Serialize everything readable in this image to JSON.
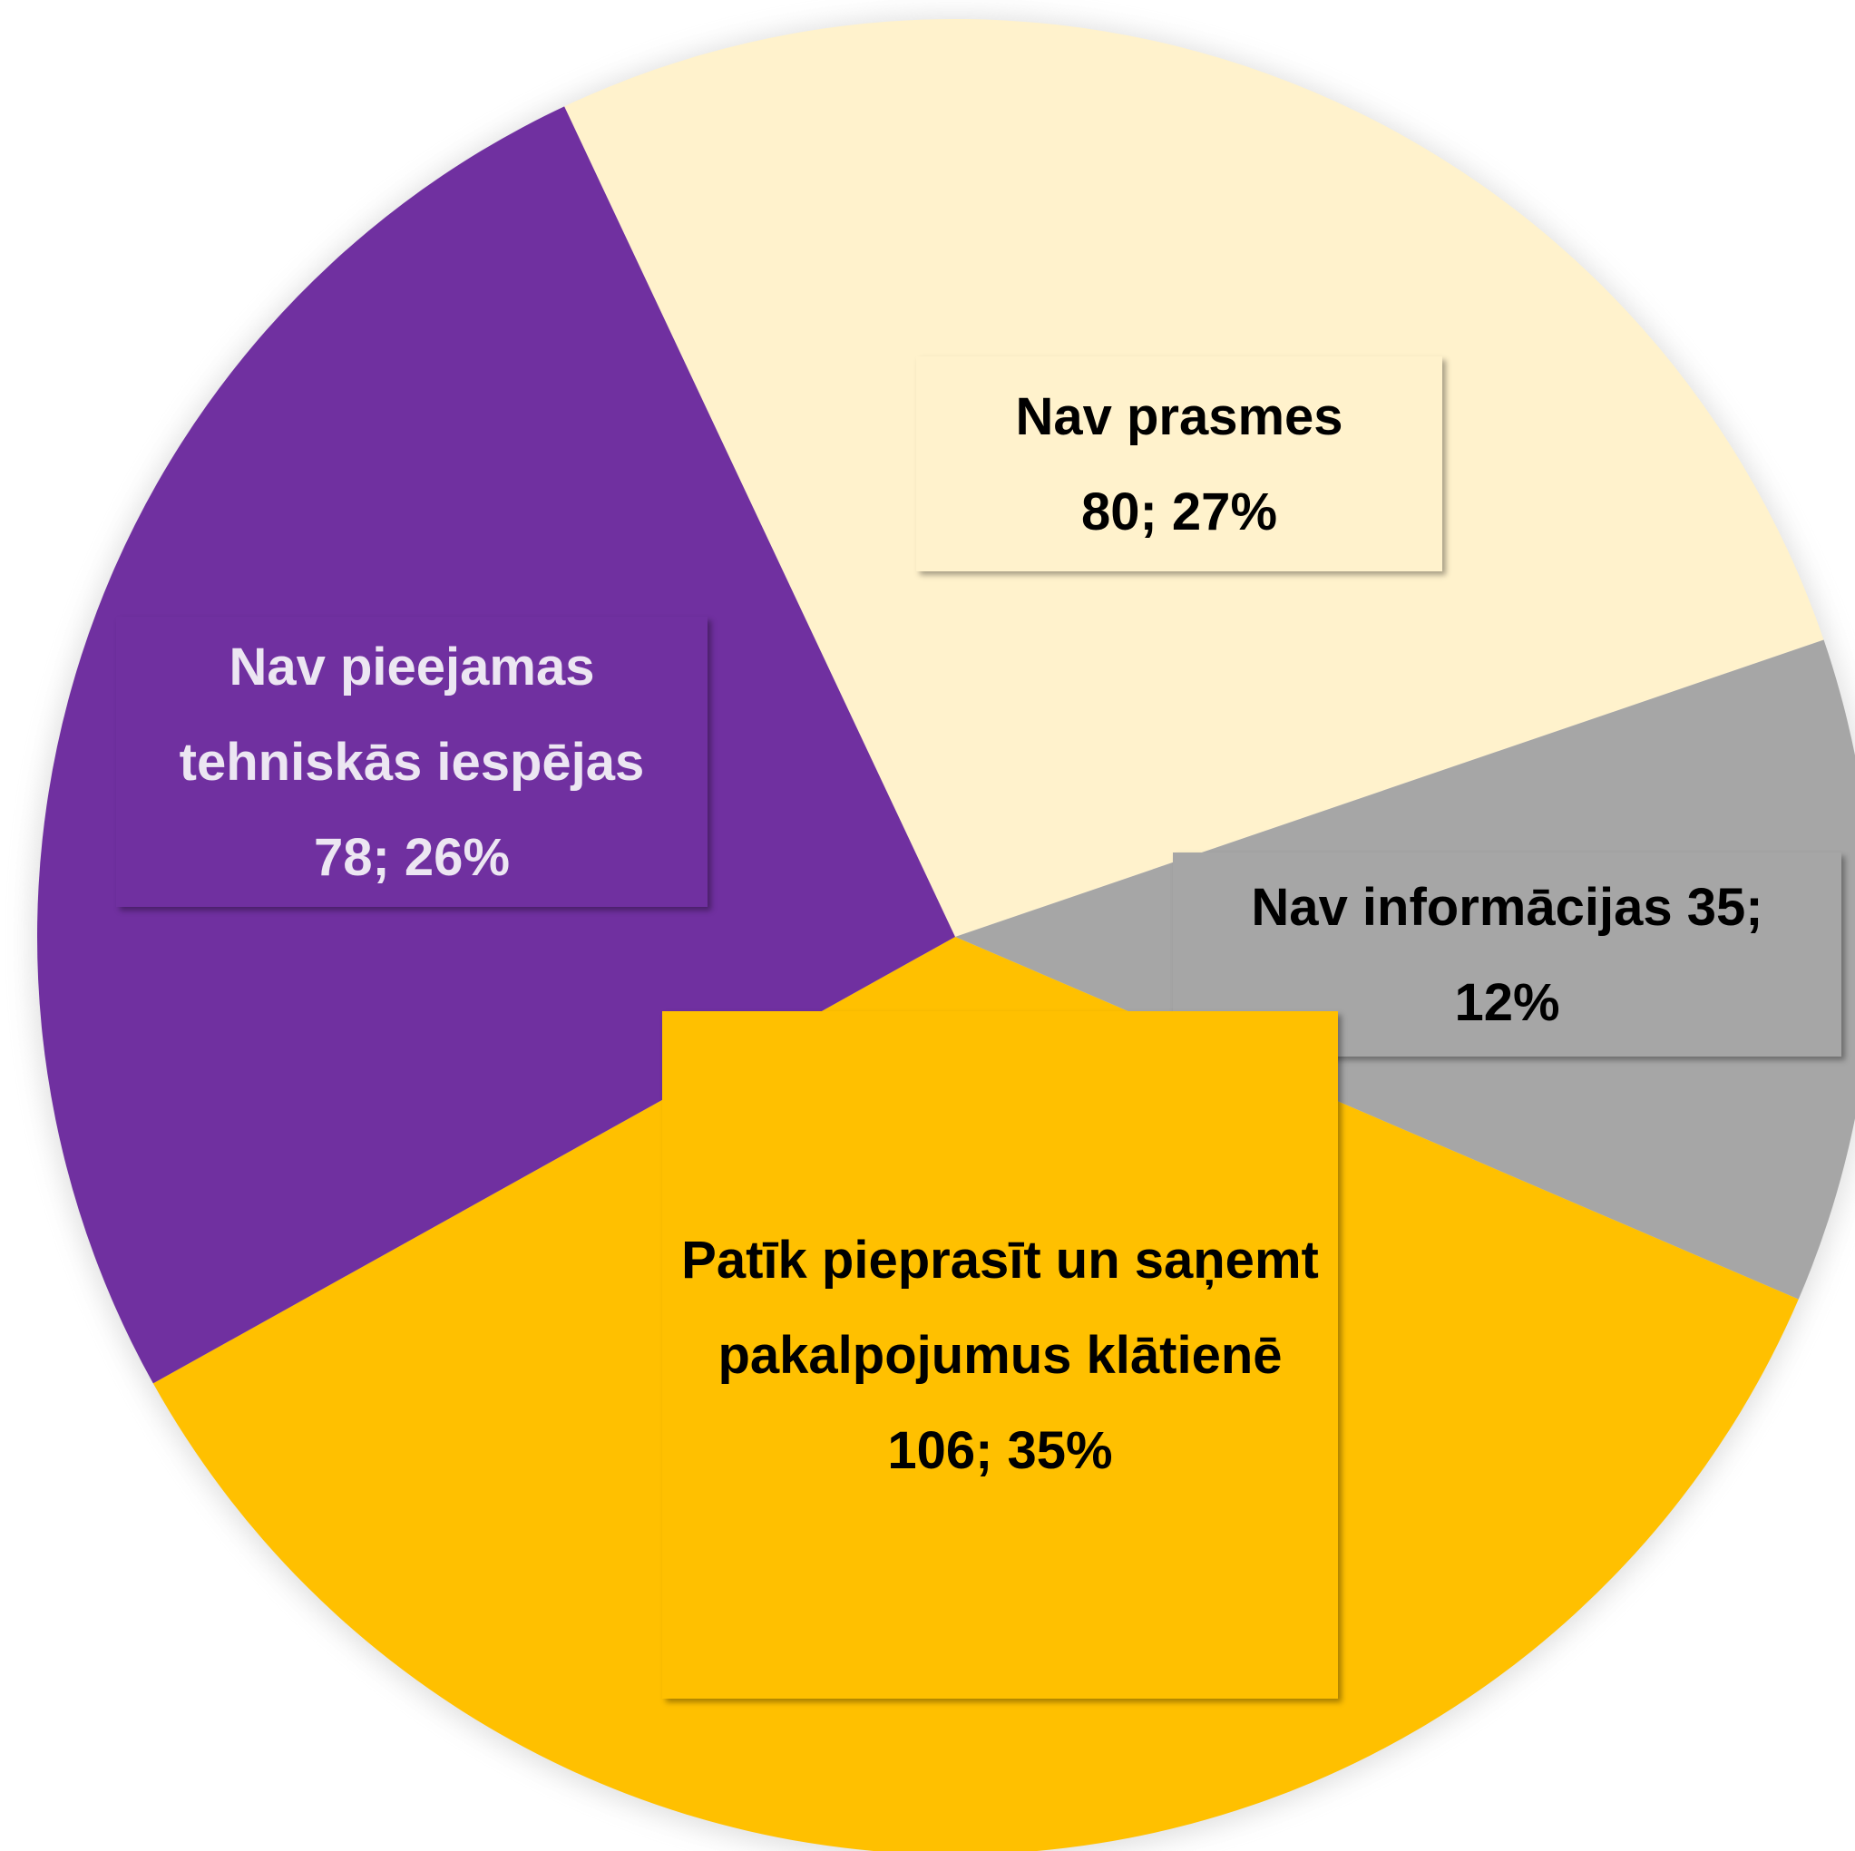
{
  "chart_data": {
    "type": "pie",
    "categories": [
      "Nav prasmes",
      "Nav informācijas",
      "Patīk pieprasīt un saņemt pakalpojumus klātienē",
      "Nav pieejamas tehniskās iespējas"
    ],
    "values": [
      80,
      35,
      106,
      78
    ],
    "value_labels": [
      "80; 27%",
      "35; 12%",
      "106; 35%",
      "78; 26%"
    ],
    "colors": [
      "#FFF2CC",
      "#A6A6A6",
      "#FFC000",
      "#7030A0"
    ]
  }
}
